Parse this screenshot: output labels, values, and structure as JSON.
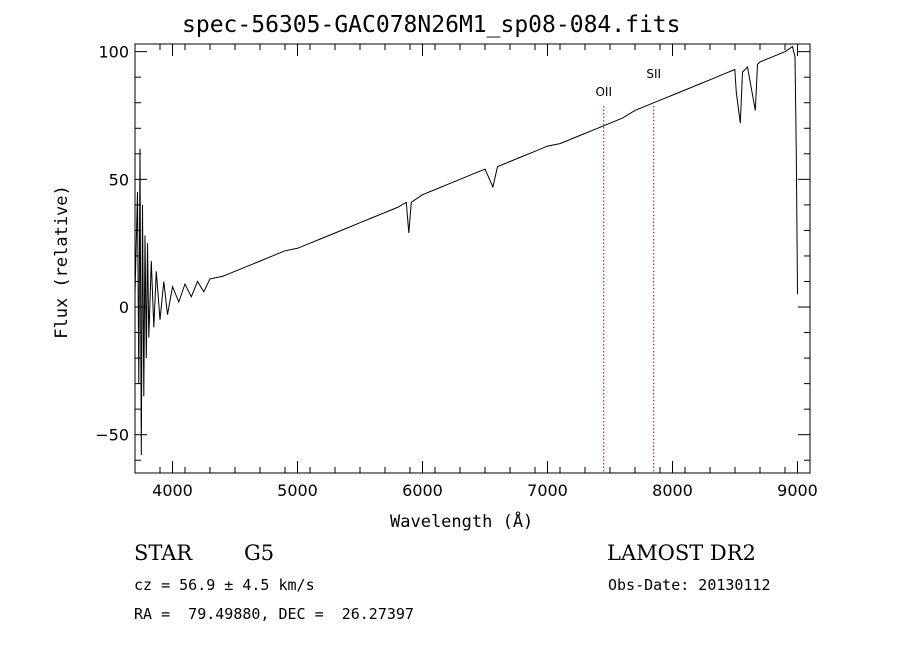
{
  "chart_data": {
    "type": "line",
    "title": "spec-56305-GAC078N26M1_sp08-084.fits",
    "xlabel": "Wavelength (Å)",
    "ylabel": "Flux (relative)",
    "xlim": [
      3700,
      9100
    ],
    "ylim": [
      -65,
      103
    ],
    "x_ticks": [
      4000,
      5000,
      6000,
      7000,
      8000,
      9000
    ],
    "y_ticks": [
      -50,
      0,
      50,
      100
    ],
    "grid": false,
    "line_color": "#000000",
    "series": [
      {
        "values": [
          [
            3700,
            5
          ],
          [
            3720,
            45
          ],
          [
            3730,
            -30
          ],
          [
            3740,
            62
          ],
          [
            3750,
            -58
          ],
          [
            3760,
            40
          ],
          [
            3770,
            -35
          ],
          [
            3780,
            28
          ],
          [
            3790,
            -20
          ],
          [
            3800,
            25
          ],
          [
            3810,
            -12
          ],
          [
            3830,
            18
          ],
          [
            3850,
            -8
          ],
          [
            3870,
            14
          ],
          [
            3900,
            -5
          ],
          [
            3930,
            10
          ],
          [
            3960,
            -3
          ],
          [
            4000,
            8
          ],
          [
            4050,
            2
          ],
          [
            4100,
            9
          ],
          [
            4150,
            4
          ],
          [
            4200,
            10
          ],
          [
            4250,
            6
          ],
          [
            4300,
            11
          ],
          [
            4400,
            12
          ],
          [
            4500,
            14
          ],
          [
            4600,
            16
          ],
          [
            4700,
            18
          ],
          [
            4800,
            20
          ],
          [
            4900,
            22
          ],
          [
            5000,
            23
          ],
          [
            5100,
            25
          ],
          [
            5200,
            27
          ],
          [
            5300,
            29
          ],
          [
            5400,
            31
          ],
          [
            5500,
            33
          ],
          [
            5600,
            35
          ],
          [
            5700,
            37
          ],
          [
            5800,
            39
          ],
          [
            5870,
            41
          ],
          [
            5890,
            29
          ],
          [
            5910,
            41
          ],
          [
            6000,
            44
          ],
          [
            6100,
            46
          ],
          [
            6200,
            48
          ],
          [
            6300,
            50
          ],
          [
            6400,
            52
          ],
          [
            6500,
            54
          ],
          [
            6563,
            47
          ],
          [
            6600,
            55
          ],
          [
            6700,
            57
          ],
          [
            6800,
            59
          ],
          [
            6900,
            61
          ],
          [
            7000,
            63
          ],
          [
            7100,
            64
          ],
          [
            7200,
            66
          ],
          [
            7300,
            68
          ],
          [
            7400,
            70
          ],
          [
            7500,
            72
          ],
          [
            7600,
            74
          ],
          [
            7700,
            77
          ],
          [
            7800,
            79
          ],
          [
            7900,
            81
          ],
          [
            8000,
            83
          ],
          [
            8100,
            85
          ],
          [
            8200,
            87
          ],
          [
            8300,
            89
          ],
          [
            8400,
            91
          ],
          [
            8498,
            93
          ],
          [
            8510,
            84
          ],
          [
            8542,
            72
          ],
          [
            8560,
            92
          ],
          [
            8600,
            94
          ],
          [
            8662,
            77
          ],
          [
            8680,
            95
          ],
          [
            8700,
            96
          ],
          [
            8800,
            98
          ],
          [
            8900,
            100
          ],
          [
            8960,
            102
          ],
          [
            8980,
            98
          ],
          [
            8990,
            60
          ],
          [
            9000,
            5
          ]
        ]
      }
    ],
    "annotations": [
      {
        "label": "OII",
        "x": 7450,
        "line_style": "dotted",
        "line_color": "#cc0000"
      },
      {
        "label": "SII",
        "x": 7850,
        "line_style": "dotted",
        "line_color": "#cc0000"
      }
    ]
  },
  "info": {
    "class_label": "STAR",
    "subclass_label": "G5",
    "survey_label": "LAMOST DR2",
    "redshift_line": "cz = 56.9 ± 4.5 km/s",
    "obsdate_line": "Obs-Date: 20130112",
    "coord_line": "RA =  79.49880, DEC =  26.27397"
  }
}
